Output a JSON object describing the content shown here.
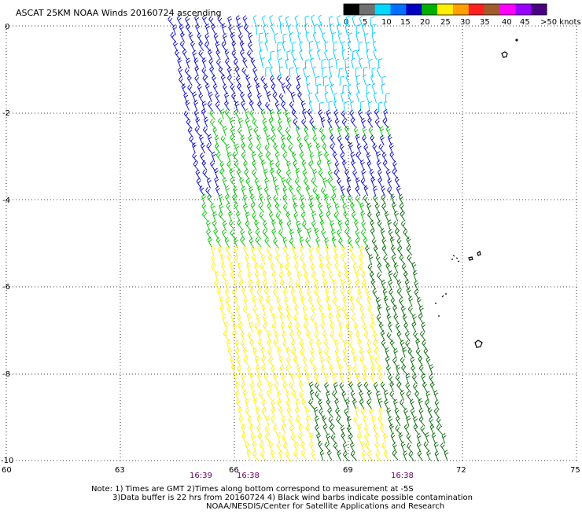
{
  "title": "ASCAT 25KM NOAA Winds 20160724 ascending",
  "legend": {
    "labels": [
      "0",
      "5",
      "10",
      "15",
      "20",
      "25",
      "30",
      "35",
      "40",
      "45",
      ">50 knots"
    ],
    "colors": [
      "#000000",
      "#707070",
      "#00d8ff",
      "#0070ff",
      "#0000c0",
      "#00b000",
      "#ffee00",
      "#ffa000",
      "#ff2020",
      "#a05a2c",
      "#ff00ff",
      "#9900ff",
      "#4b0082"
    ]
  },
  "axes": {
    "x_ticks": [
      "60",
      "63",
      "66",
      "69",
      "72",
      "75"
    ],
    "y_ticks": [
      "0",
      "-2",
      "-4",
      "-6",
      "-8",
      "-10"
    ]
  },
  "times": [
    "16:39",
    "16:38",
    "16:38"
  ],
  "notes": {
    "line1": "Note: 1) Times are GMT 2)Times along bottom correspond to measurement at -5S",
    "line2": "3)Data buffer is 22 hrs from 20160724 4) Black wind barbs indicate possible contamination",
    "line3": "NOAA/NESDIS/Center for Satellite Applications and Research"
  },
  "swath": {
    "corners_lonlat": [
      [
        64.4,
        0.0
      ],
      [
        69.6,
        0.0
      ],
      [
        71.6,
        -10.0
      ],
      [
        66.4,
        -10.0
      ]
    ]
  },
  "wind_regions": [
    {
      "name": "light-blue",
      "color": "#00c8ff"
    },
    {
      "name": "dark-blue",
      "color": "#0000c8"
    },
    {
      "name": "green",
      "color": "#00c000"
    },
    {
      "name": "dark-green",
      "color": "#006400"
    },
    {
      "name": "yellow",
      "color": "#ffee00"
    }
  ]
}
